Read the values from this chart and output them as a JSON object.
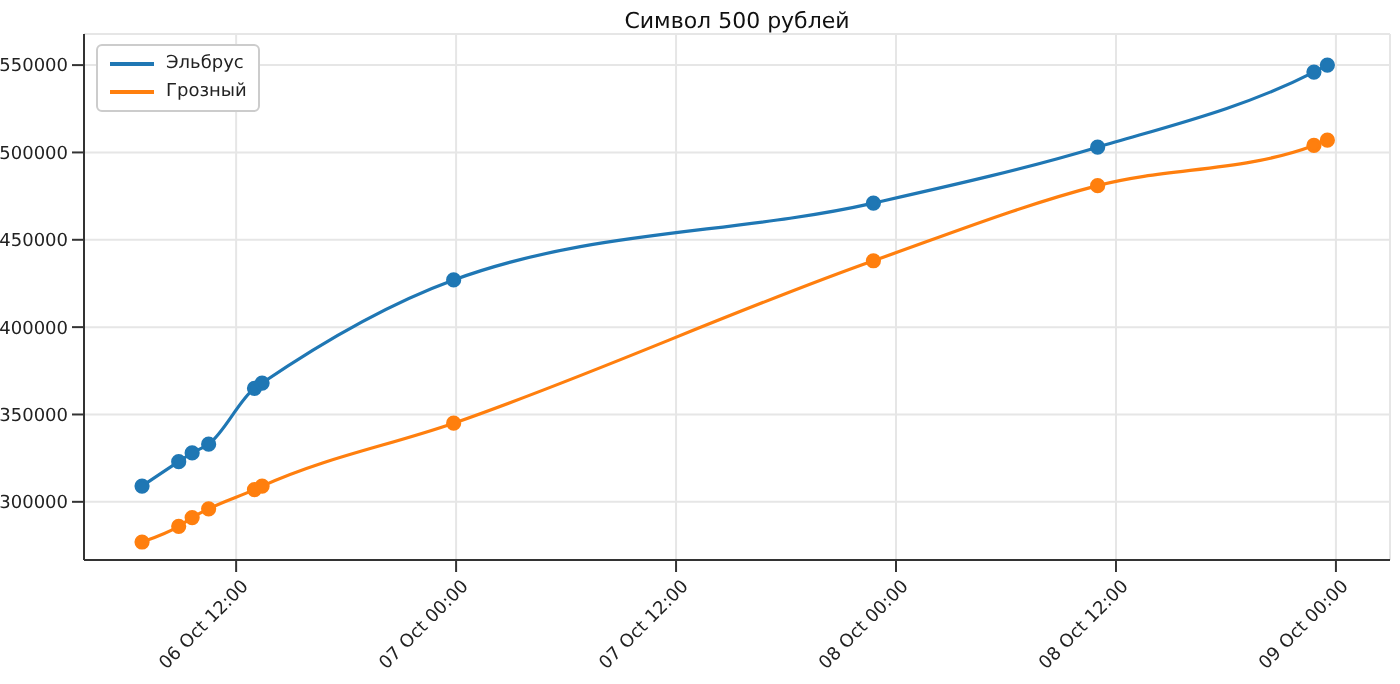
{
  "chart_data": {
    "type": "line",
    "title": "Символ 500 рублей",
    "x": [
      "--10-06T06:52",
      "--10-06T08:52",
      "--10-06T09:36",
      "--10-06T10:30",
      "--10-06T13:00",
      "--10-06T13:25",
      "--10-06T23:52",
      "--10-07T22:46",
      "--10-08T11:00",
      "--10-08T22:48",
      "--10-08T23:32"
    ],
    "series": [
      {
        "name": "Эльбрус",
        "color": "#1f77b4",
        "values": [
          309000,
          323000,
          328000,
          333000,
          365000,
          368000,
          427000,
          471000,
          503000,
          546000,
          550000
        ]
      },
      {
        "name": "Грозный",
        "color": "#ff7f0e",
        "values": [
          277000,
          286000,
          291000,
          296000,
          307000,
          309000,
          345000,
          438000,
          481000,
          504000,
          507000
        ]
      }
    ],
    "xlim": [
      "--10-06T03:42",
      "--10-09T02:57"
    ],
    "xticks": [
      {
        "value": "--10-06T12:00",
        "label": "06 Oct 12:00"
      },
      {
        "value": "--10-07T00:00",
        "label": "07 Oct 00:00"
      },
      {
        "value": "--10-07T12:00",
        "label": "07 Oct 12:00"
      },
      {
        "value": "--10-08T00:00",
        "label": "08 Oct 00:00"
      },
      {
        "value": "--10-08T12:00",
        "label": "08 Oct 12:00"
      },
      {
        "value": "--10-09T00:00",
        "label": "09 Oct 00:00"
      }
    ],
    "ylim": [
      266700,
      567800
    ],
    "yticks": [
      300000,
      350000,
      400000,
      450000,
      500000,
      550000
    ],
    "grid": true,
    "legend": "top left",
    "marker": "circle",
    "line_style": "solid"
  }
}
